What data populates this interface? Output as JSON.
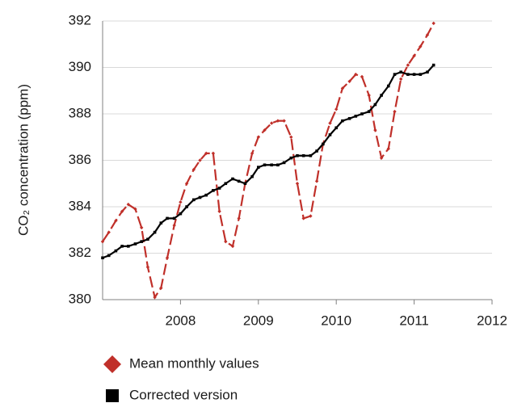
{
  "chart_data": {
    "type": "line",
    "y_label": "CO₂ concentration (ppm)",
    "x": [
      2007,
      2007.08,
      2007.17,
      2007.25,
      2007.33,
      2007.42,
      2007.5,
      2007.58,
      2007.67,
      2007.75,
      2007.83,
      2007.92,
      2008,
      2008.08,
      2008.17,
      2008.25,
      2008.33,
      2008.42,
      2008.5,
      2008.58,
      2008.67,
      2008.75,
      2008.83,
      2008.92,
      2009,
      2009.08,
      2009.17,
      2009.25,
      2009.33,
      2009.42,
      2009.5,
      2009.58,
      2009.67,
      2009.75,
      2009.83,
      2009.92,
      2010,
      2010.08,
      2010.17,
      2010.25,
      2010.33,
      2010.42,
      2010.5,
      2010.58,
      2010.67,
      2010.75,
      2010.83,
      2010.92,
      2011,
      2011.08,
      2011.17,
      2011.25
    ],
    "series": [
      {
        "name": "Mean monthly values",
        "color": "#c0302a",
        "dashed": true,
        "marker": "diamond",
        "values": [
          382.5,
          382.9,
          383.4,
          383.8,
          384.1,
          383.9,
          383.1,
          381.4,
          380.1,
          380.5,
          381.8,
          383.2,
          384.2,
          385.0,
          385.6,
          386.0,
          386.3,
          386.3,
          383.8,
          382.5,
          382.3,
          383.5,
          385.0,
          386.3,
          387.0,
          387.3,
          387.6,
          387.7,
          387.7,
          387.0,
          385.0,
          383.5,
          383.6,
          385.1,
          386.7,
          387.6,
          388.2,
          389.1,
          389.4,
          389.7,
          389.6,
          388.8,
          387.3,
          386.1,
          386.5,
          388.1,
          389.5,
          390.1,
          390.5,
          390.9,
          391.4,
          391.9
        ]
      },
      {
        "name": "Corrected version",
        "color": "#000000",
        "dashed": false,
        "marker": "square",
        "values": [
          381.8,
          381.9,
          382.1,
          382.3,
          382.3,
          382.4,
          382.5,
          382.6,
          382.9,
          383.3,
          383.5,
          383.5,
          383.7,
          384.0,
          384.3,
          384.4,
          384.5,
          384.7,
          384.8,
          385.0,
          385.2,
          385.1,
          385.0,
          385.3,
          385.7,
          385.8,
          385.8,
          385.8,
          385.9,
          386.1,
          386.2,
          386.2,
          386.2,
          386.4,
          386.7,
          387.1,
          387.4,
          387.7,
          387.8,
          387.9,
          388.0,
          388.1,
          388.4,
          388.8,
          389.2,
          389.7,
          389.8,
          389.7,
          389.7,
          389.7,
          389.8,
          390.1
        ]
      }
    ],
    "xlim": [
      2007,
      2012
    ],
    "xticks": [
      2008,
      2009,
      2010,
      2011,
      2012
    ],
    "ylim": [
      380,
      392
    ],
    "yticks": [
      380,
      382,
      384,
      386,
      388,
      390,
      392
    ],
    "grid": true,
    "legend": "bottom"
  }
}
